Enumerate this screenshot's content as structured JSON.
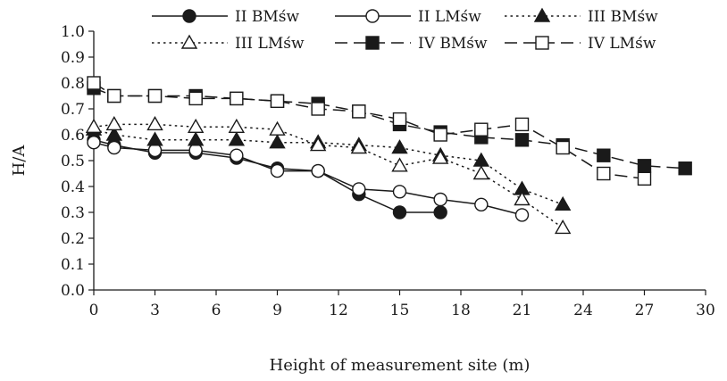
{
  "chart_data": {
    "type": "line",
    "title": "",
    "xlabel": "Height of measurement site (m)",
    "ylabel": "H/A",
    "xlim": [
      0,
      30
    ],
    "ylim": [
      0,
      1
    ],
    "xticks": [
      0,
      3,
      6,
      9,
      12,
      15,
      18,
      21,
      24,
      27,
      30
    ],
    "yticks": [
      0.0,
      0.1,
      0.2,
      0.3,
      0.4,
      0.5,
      0.6,
      0.7,
      0.8,
      0.9,
      1.0
    ],
    "xtick_labels": [
      "0",
      "3",
      "6",
      "9",
      "12",
      "15",
      "18",
      "21",
      "24",
      "27",
      "30"
    ],
    "ytick_labels": [
      "0.0",
      "0.1",
      "0.2",
      "0.3",
      "0.4",
      "0.5",
      "0.6",
      "0.7",
      "0.8",
      "0.9",
      "1.0"
    ],
    "grid": false,
    "legend_position": "top",
    "series": [
      {
        "name": "II BMśw",
        "line": "solid",
        "marker": "circle-filled",
        "x": [
          0,
          1,
          3,
          5,
          7,
          9,
          11,
          13,
          15,
          17
        ],
        "y": [
          0.58,
          0.56,
          0.53,
          0.53,
          0.51,
          0.47,
          0.46,
          0.37,
          0.3,
          0.3
        ]
      },
      {
        "name": "II LMśw",
        "line": "solid",
        "marker": "circle-open",
        "x": [
          0,
          1,
          3,
          5,
          7,
          9,
          11,
          13,
          15,
          17,
          19,
          21
        ],
        "y": [
          0.57,
          0.55,
          0.54,
          0.54,
          0.52,
          0.46,
          0.46,
          0.39,
          0.38,
          0.35,
          0.33,
          0.29
        ]
      },
      {
        "name": "III BMśw",
        "line": "dotted",
        "marker": "triangle-filled",
        "x": [
          0,
          1,
          3,
          5,
          7,
          9,
          11,
          13,
          15,
          17,
          19,
          21,
          23
        ],
        "y": [
          0.62,
          0.6,
          0.58,
          0.58,
          0.58,
          0.57,
          0.57,
          0.56,
          0.55,
          0.52,
          0.5,
          0.39,
          0.33
        ]
      },
      {
        "name": "III LMśw",
        "line": "dotted",
        "marker": "triangle-open",
        "x": [
          0,
          1,
          3,
          5,
          7,
          9,
          11,
          13,
          15,
          17,
          19,
          21,
          23
        ],
        "y": [
          0.63,
          0.64,
          0.64,
          0.63,
          0.63,
          0.62,
          0.56,
          0.55,
          0.48,
          0.51,
          0.45,
          0.35,
          0.24
        ]
      },
      {
        "name": "IV BMśw",
        "line": "long-dash",
        "marker": "square-filled",
        "x": [
          0,
          1,
          3,
          5,
          7,
          9,
          11,
          13,
          15,
          17,
          19,
          21,
          23,
          25,
          27,
          29
        ],
        "y": [
          0.78,
          0.75,
          0.75,
          0.75,
          0.74,
          0.73,
          0.72,
          0.69,
          0.64,
          0.61,
          0.59,
          0.58,
          0.56,
          0.52,
          0.48,
          0.47
        ]
      },
      {
        "name": "IV LMśw",
        "line": "long-dash",
        "marker": "square-open",
        "x": [
          0,
          1,
          3,
          5,
          7,
          9,
          11,
          13,
          15,
          17,
          19,
          21,
          23,
          25,
          27
        ],
        "y": [
          0.8,
          0.75,
          0.75,
          0.74,
          0.74,
          0.73,
          0.7,
          0.69,
          0.66,
          0.6,
          0.62,
          0.64,
          0.55,
          0.45,
          0.43
        ]
      }
    ],
    "colors": {
      "ink": "#1a1a1a",
      "background": "#ffffff"
    }
  }
}
